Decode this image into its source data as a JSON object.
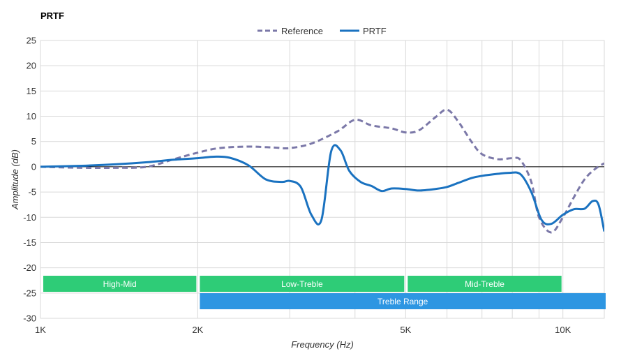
{
  "chart_data": {
    "type": "line",
    "title": "PRTF",
    "xlabel": "Frequency (Hz)",
    "ylabel": "Amplitude (dB)",
    "xscale": "log",
    "xlim": [
      1000,
      12000
    ],
    "ylim": [
      -30,
      25
    ],
    "yticks": [
      25,
      20,
      15,
      10,
      5,
      0,
      -5,
      -10,
      -15,
      -20,
      -25,
      -30
    ],
    "xticks": [
      {
        "value": 1000,
        "label": "1K"
      },
      {
        "value": 2000,
        "label": "2K"
      },
      {
        "value": 5000,
        "label": "5K"
      },
      {
        "value": 10000,
        "label": "10K"
      }
    ],
    "xgrid": [
      1000,
      2000,
      3000,
      4000,
      5000,
      6000,
      7000,
      8000,
      9000,
      10000,
      12000
    ],
    "grid": true,
    "legend": "top-center",
    "series": [
      {
        "name": "Reference",
        "style": "dashed",
        "color": "#7b78a8",
        "x": [
          1000,
          1200,
          1400,
          1600,
          1800,
          2000,
          2200,
          2500,
          2800,
          3000,
          3300,
          3700,
          4000,
          4300,
          4700,
          5000,
          5300,
          5700,
          6000,
          6300,
          6700,
          7000,
          7500,
          8000,
          8300,
          8700,
          9000,
          9500,
          10000,
          10500,
          11000,
          11500,
          12000
        ],
        "values": [
          0,
          -0.2,
          -0.2,
          0,
          1.5,
          2.8,
          3.7,
          4,
          3.8,
          3.7,
          4.6,
          7,
          9.3,
          8.2,
          7.6,
          6.8,
          7.2,
          9.8,
          11.3,
          9,
          4.8,
          2.5,
          1.5,
          1.7,
          1.3,
          -3,
          -10,
          -13,
          -10,
          -6,
          -2.5,
          -0.5,
          0.7
        ]
      },
      {
        "name": "PRTF",
        "style": "solid",
        "color": "#1a72c0",
        "x": [
          1000,
          1200,
          1400,
          1600,
          1800,
          2000,
          2150,
          2300,
          2500,
          2700,
          2900,
          3000,
          3150,
          3300,
          3450,
          3600,
          3750,
          3900,
          4100,
          4300,
          4500,
          4700,
          5000,
          5300,
          5700,
          6000,
          6300,
          6700,
          7000,
          7500,
          7900,
          8300,
          8700,
          9100,
          9500,
          10000,
          10500,
          11000,
          11400,
          11700,
          12000
        ],
        "values": [
          0,
          0.2,
          0.5,
          0.9,
          1.4,
          1.7,
          2,
          1.8,
          0.3,
          -2.5,
          -3,
          -2.8,
          -4,
          -9.5,
          -10.5,
          3,
          3.3,
          -0.8,
          -3,
          -3.8,
          -4.8,
          -4.3,
          -4.4,
          -4.7,
          -4.4,
          -4,
          -3.2,
          -2.2,
          -1.8,
          -1.4,
          -1.2,
          -1.5,
          -5,
          -10.5,
          -11.3,
          -9.5,
          -8.4,
          -8.3,
          -6.8,
          -7.5,
          -12.8
        ]
      }
    ],
    "bands": [
      {
        "label": "High-Mid",
        "from": 1000,
        "to": 2000,
        "row": 0,
        "color": "#2ecc77"
      },
      {
        "label": "Low-Treble",
        "from": 2000,
        "to": 5000,
        "row": 0,
        "color": "#2ecc77"
      },
      {
        "label": "Mid-Treble",
        "from": 5000,
        "to": 10000,
        "row": 0,
        "color": "#2ecc77"
      },
      {
        "label": "Treble Range",
        "from": 2000,
        "to": 12000,
        "row": 1,
        "color": "#2d96e2"
      }
    ]
  }
}
